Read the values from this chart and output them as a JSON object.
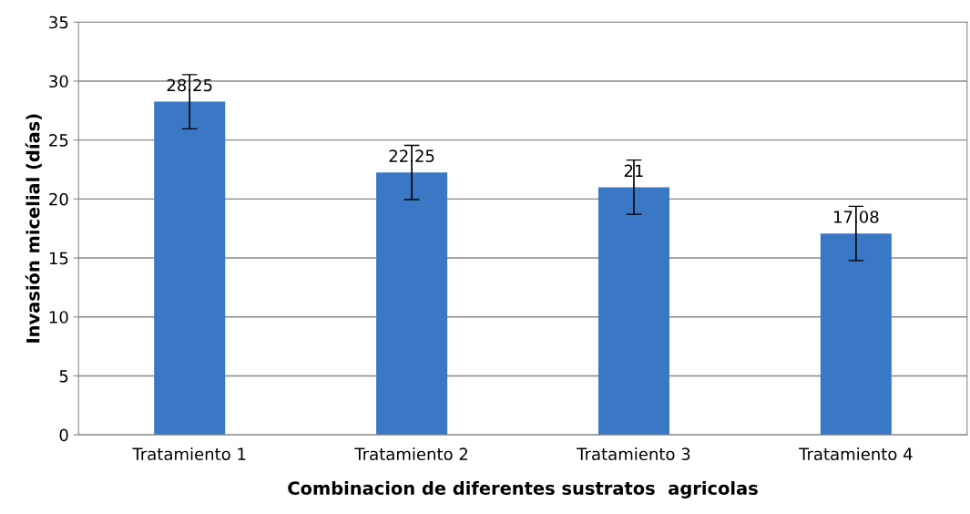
{
  "chart_data": {
    "type": "bar",
    "xlabel": "Combinacion de diferentes sustratos  agricolas",
    "ylabel": "Invasión micelial (días)",
    "categories": [
      "Tratamiento 1",
      "Tratamiento 2",
      "Tratamiento 3",
      "Tratamiento 4"
    ],
    "values": [
      28.25,
      22.25,
      21,
      17.08
    ],
    "errors": [
      2.3,
      2.3,
      2.3,
      2.3
    ],
    "color": "#3a78c6",
    "ylim": [
      0,
      35
    ],
    "yticks": [
      0,
      5,
      10,
      15,
      20,
      25,
      30,
      35
    ],
    "grid": "y",
    "data_labels": true
  }
}
